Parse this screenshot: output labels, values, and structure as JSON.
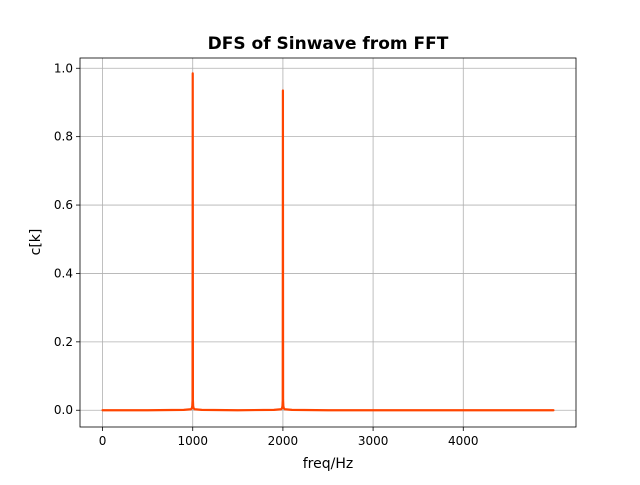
{
  "chart_data": {
    "type": "line",
    "title": "DFS of Sinwave from FFT",
    "xlabel": "freq/Hz",
    "ylabel": "c[k]",
    "xlim": [
      -250,
      5250
    ],
    "ylim": [
      -0.049,
      1.03
    ],
    "xticks": [
      0,
      1000,
      2000,
      3000,
      4000
    ],
    "yticks": [
      0.0,
      0.2,
      0.4,
      0.6,
      0.8,
      1.0
    ],
    "xtick_labels": [
      "0",
      "1000",
      "2000",
      "3000",
      "4000"
    ],
    "ytick_labels": [
      "0.0",
      "0.2",
      "0.4",
      "0.6",
      "0.8",
      "1.0"
    ],
    "grid": true,
    "series": [
      {
        "color": "#ff4500",
        "x": [
          0,
          500,
          900,
          980,
          990,
          995,
          998,
          1000,
          1002,
          1005,
          1010,
          1020,
          1100,
          1500,
          1900,
          1980,
          1990,
          1995,
          1998,
          2000,
          2002,
          2005,
          2010,
          2020,
          2100,
          2500,
          3000,
          3500,
          4000,
          4500,
          5000
        ],
        "y": [
          0.0,
          0.0,
          0.001,
          0.003,
          0.006,
          0.012,
          0.03,
          0.985,
          0.03,
          0.012,
          0.006,
          0.003,
          0.001,
          0.0,
          0.001,
          0.003,
          0.006,
          0.012,
          0.03,
          0.935,
          0.03,
          0.012,
          0.006,
          0.003,
          0.001,
          0.0,
          0.0,
          0.0,
          0.0,
          0.0,
          0.0
        ]
      }
    ]
  }
}
